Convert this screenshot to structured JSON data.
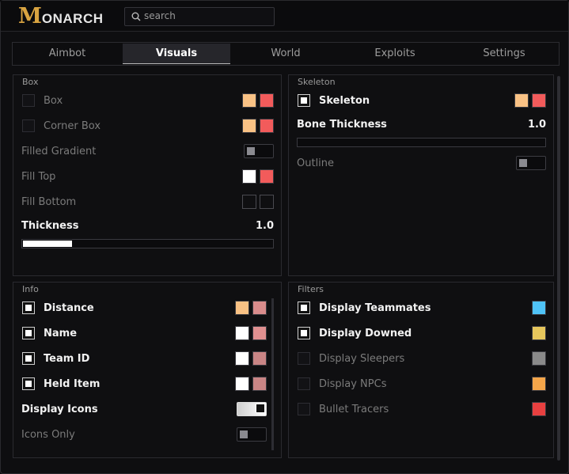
{
  "header": {
    "logo_initial": "M",
    "logo_rest": "ONARCH",
    "search_placeholder": "search"
  },
  "tabs": [
    "Aimbot",
    "Visuals",
    "World",
    "Exploits",
    "Settings"
  ],
  "active_tab": 1,
  "panels": [
    {
      "title": "Box",
      "rows": [
        {
          "label": "Box",
          "control": "checkbox",
          "on": false,
          "active": false,
          "colors": [
            "#f9c285",
            "#f25b5b"
          ]
        },
        {
          "label": "Corner Box",
          "control": "checkbox",
          "on": false,
          "active": false,
          "colors": [
            "#f9c285",
            "#f25b5b"
          ]
        },
        {
          "label": "Filled Gradient",
          "control": "toggle",
          "on": false,
          "active": false
        },
        {
          "label": "Fill Top",
          "active": false,
          "colors": [
            "#ffffff",
            "#f25b5b"
          ]
        },
        {
          "label": "Fill Bottom",
          "active": false,
          "colors": [
            null,
            null
          ]
        },
        {
          "label": "Thickness",
          "control": "slider",
          "active": true,
          "value": "1.0"
        }
      ]
    },
    {
      "title": "Skeleton",
      "rows": [
        {
          "label": "Skeleton",
          "control": "checkbox",
          "on": true,
          "active": true,
          "colors": [
            "#f9c285",
            "#f25b5b"
          ]
        },
        {
          "label": "Bone Thickness",
          "control": "slider",
          "active": true,
          "value": "1.0"
        },
        {
          "label": "Outline",
          "control": "toggle",
          "on": false,
          "active": false
        }
      ]
    },
    {
      "title": "Info",
      "rows": [
        {
          "label": "Distance",
          "control": "checkbox",
          "on": true,
          "active": true,
          "colors": [
            "#f9c285",
            "#d98c8c"
          ]
        },
        {
          "label": "Name",
          "control": "checkbox",
          "on": true,
          "active": true,
          "colors": [
            "#ffffff",
            "#e09090"
          ]
        },
        {
          "label": "Team ID",
          "control": "checkbox",
          "on": true,
          "active": true,
          "colors": [
            "#ffffff",
            "#c98585"
          ]
        },
        {
          "label": "Held Item",
          "control": "checkbox",
          "on": true,
          "active": true,
          "colors": [
            "#ffffff",
            "#c98585"
          ]
        },
        {
          "label": "Display Icons",
          "control": "toggle",
          "on": true,
          "active": true
        },
        {
          "label": "Icons Only",
          "control": "toggle",
          "on": false,
          "active": false
        }
      ]
    },
    {
      "title": "Filters",
      "rows": [
        {
          "label": "Display Teammates",
          "control": "checkbox",
          "on": true,
          "active": true,
          "colors": [
            "#4fc3f7"
          ]
        },
        {
          "label": "Display Downed",
          "control": "checkbox",
          "on": true,
          "active": true,
          "colors": [
            "#e6c65c"
          ]
        },
        {
          "label": "Display Sleepers",
          "control": "checkbox",
          "on": false,
          "active": false,
          "colors": [
            "#8a8a8a"
          ]
        },
        {
          "label": "Display NPCs",
          "control": "checkbox",
          "on": false,
          "active": false,
          "colors": [
            "#f5a64a"
          ]
        },
        {
          "label": "Bullet Tracers",
          "control": "checkbox",
          "on": false,
          "active": false,
          "colors": [
            "#e84040"
          ]
        }
      ]
    }
  ]
}
